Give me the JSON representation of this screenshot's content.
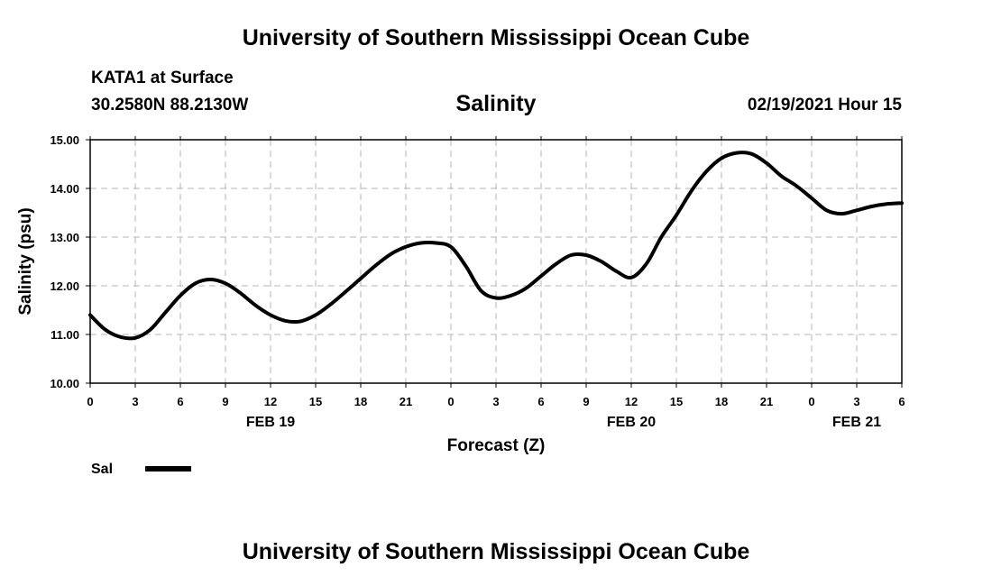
{
  "header": {
    "title": "University of Southern Mississippi Ocean Cube",
    "station": "KATA1 at Surface",
    "coords": "30.2580N 88.2130W",
    "timestamp": "02/19/2021 Hour 15"
  },
  "footer": {
    "title": "University of Southern Mississippi Ocean Cube"
  },
  "chart_data": {
    "type": "line",
    "title": "Salinity",
    "xlabel": "Forecast (Z)",
    "ylabel": "Salinity (psu)",
    "ylim": [
      10.0,
      15.0
    ],
    "yticks": [
      "10.00",
      "11.00",
      "12.00",
      "13.00",
      "14.00",
      "15.00"
    ],
    "xlim": [
      0,
      54
    ],
    "xticks": [
      {
        "h": 0,
        "label": "0"
      },
      {
        "h": 3,
        "label": "3"
      },
      {
        "h": 6,
        "label": "6"
      },
      {
        "h": 9,
        "label": "9"
      },
      {
        "h": 12,
        "label": "12"
      },
      {
        "h": 15,
        "label": "15"
      },
      {
        "h": 18,
        "label": "18"
      },
      {
        "h": 21,
        "label": "21"
      },
      {
        "h": 24,
        "label": "0"
      },
      {
        "h": 27,
        "label": "3"
      },
      {
        "h": 30,
        "label": "6"
      },
      {
        "h": 33,
        "label": "9"
      },
      {
        "h": 36,
        "label": "12"
      },
      {
        "h": 39,
        "label": "15"
      },
      {
        "h": 42,
        "label": "18"
      },
      {
        "h": 45,
        "label": "21"
      },
      {
        "h": 48,
        "label": "0"
      },
      {
        "h": 51,
        "label": "3"
      },
      {
        "h": 54,
        "label": "6"
      }
    ],
    "date_labels": [
      {
        "h": 12,
        "label": "FEB 19"
      },
      {
        "h": 36,
        "label": "FEB 20"
      },
      {
        "h": 51,
        "label": "FEB 21"
      }
    ],
    "grid": true,
    "legend": {
      "position": "bottom-left",
      "label": "Sal"
    },
    "series": [
      {
        "name": "Sal",
        "color": "#000000",
        "x": [
          0,
          1,
          2,
          3,
          4,
          5,
          6,
          7,
          8,
          9,
          10,
          11,
          12,
          13,
          14,
          15,
          16,
          17,
          18,
          19,
          20,
          21,
          22,
          23,
          24,
          25,
          26,
          27,
          28,
          29,
          30,
          31,
          32,
          33,
          34,
          35,
          36,
          37,
          38,
          39,
          40,
          41,
          42,
          43,
          44,
          45,
          46,
          47,
          48,
          49,
          50,
          51,
          52,
          53,
          54
        ],
        "values": [
          11.4,
          11.1,
          10.95,
          10.93,
          11.1,
          11.45,
          11.8,
          12.05,
          12.13,
          12.05,
          11.85,
          11.6,
          11.4,
          11.28,
          11.27,
          11.4,
          11.62,
          11.88,
          12.15,
          12.42,
          12.65,
          12.8,
          12.88,
          12.88,
          12.8,
          12.4,
          11.9,
          11.75,
          11.8,
          11.95,
          12.2,
          12.45,
          12.63,
          12.63,
          12.5,
          12.3,
          12.17,
          12.45,
          13.0,
          13.45,
          13.95,
          14.35,
          14.62,
          14.73,
          14.71,
          14.52,
          14.25,
          14.05,
          13.8,
          13.55,
          13.48,
          13.55,
          13.63,
          13.68,
          13.7
        ]
      }
    ]
  }
}
